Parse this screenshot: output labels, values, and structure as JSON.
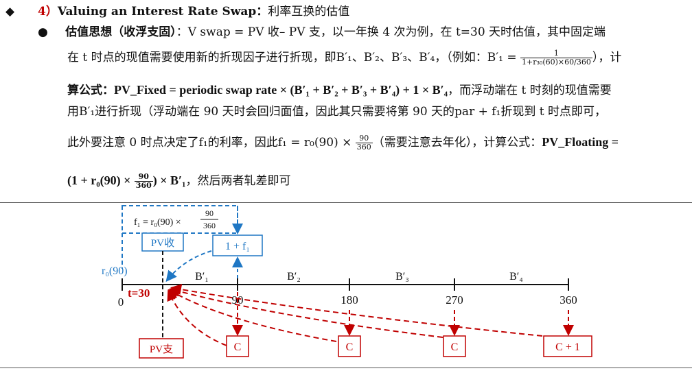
{
  "header": {
    "bullet": "◆",
    "num": "4）",
    "title": "Valuing an Interest Rate Swap",
    "colon": "：",
    "subtitle": "利率互换的估值"
  },
  "body": {
    "dot": "●",
    "p1_head": "估值思想（收浮支固）",
    "p1_rest": "：V swap = PV 收– PV 支，以一年换 4 次为例，在 t=30 天时估值，其中固定端",
    "p2": "在 t 时点的现值需要使用新的折现因子进行折现，即B′₁、B′₂、B′₃、B′₄，（例如：B′₁ =",
    "p2_frac_num": "1",
    "p2_frac_den": "1+r₃₀(60)×60/360",
    "p2_end": "），计",
    "p3_pre": "算公式：",
    "p3_formula": "PV_Fixed = periodic swap rate × (B′₁ + B′₂ + B′₃ + B′₄) + 1 × B′₄",
    "p3_post": "，而浮动端在 t 时刻的现值需要",
    "p4": "用B′₁进行折现（浮动端在 90 天时会回归面值，因此其只需要将第 90 天的par + f₁折现到 t 时点即可，",
    "p5_pre": "此外要注意 0 时点决定了f₁的利率，因此f₁ = r₀(90) ×",
    "p5_frac_num": "90",
    "p5_frac_den": "360",
    "p5_mid": "（需要注意去年化），计算公式：",
    "p5_formula": "PV_Floating =",
    "p6_formula_a": "(1 + r₀(90) ×",
    "p6_frac_num": "90",
    "p6_frac_den": "360",
    "p6_formula_b": ") × B′₁",
    "p6_post": "，然后两者轧差即可"
  },
  "diagram": {
    "f1_formula": "f₁ = r₀(90) ×",
    "f1_frac_num": "90",
    "f1_frac_den": "360",
    "pv_receive": "PV收",
    "pv_pay": "PV支",
    "one_plus_f1": "1 + f₁",
    "r0_label": "r₀(90)",
    "t30_label": "t=30",
    "ticks": [
      "0",
      "90",
      "180",
      "270",
      "360"
    ],
    "segments": [
      "B′₁",
      "B′₂",
      "B′₃",
      "B′₄"
    ],
    "coupons": [
      "C",
      "C",
      "C",
      "C + 1"
    ],
    "colors": {
      "blue": "#1f77c4",
      "red": "#c00000",
      "axis": "#111111"
    }
  }
}
